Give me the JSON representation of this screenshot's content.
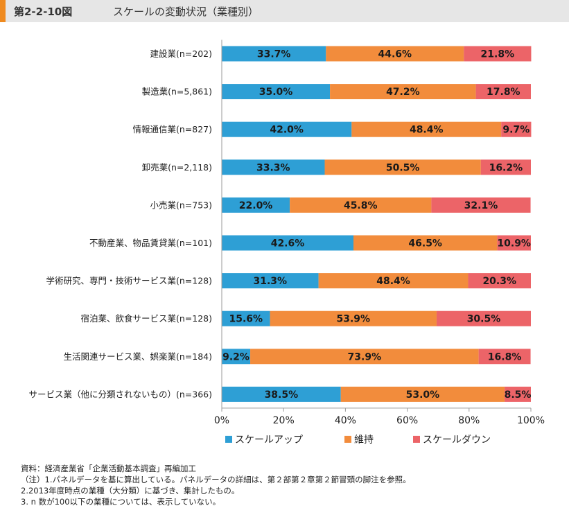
{
  "header": {
    "figure_number": "第2-2-10図",
    "title": "スケールの変動状況（業種別）"
  },
  "chart_data": {
    "type": "bar",
    "orientation": "horizontal",
    "stacked": true,
    "title": "スケールの変動状況（業種別）",
    "categories": [
      "建設業(n=202)",
      "製造業(n=5,861)",
      "情報通信業(n=827)",
      "卸売業(n=2,118)",
      "小売業(n=753)",
      "不動産業、物品賃貸業(n=101)",
      "学術研究、専門・技術サービス業(n=128)",
      "宿泊業、飲食サービス業(n=128)",
      "生活関連サービス業、娯楽業(n=184)",
      "サービス業（他に分類されないもの）(n=366)"
    ],
    "series": [
      {
        "name": "スケールアップ",
        "color": "#2e9fd5",
        "values": [
          33.7,
          35.0,
          42.0,
          33.3,
          22.0,
          42.6,
          31.3,
          15.6,
          9.2,
          38.5
        ],
        "labels": [
          "33.7%",
          "35.0%",
          "42.0%",
          "33.3%",
          "22.0%",
          "42.6%",
          "31.3%",
          "15.6%",
          "9.2%",
          "38.5%"
        ]
      },
      {
        "name": "維持",
        "color": "#f28c3c",
        "values": [
          44.6,
          47.2,
          48.4,
          50.5,
          45.8,
          46.5,
          48.4,
          53.9,
          73.9,
          53.0
        ],
        "labels": [
          "44.6%",
          "47.2%",
          "48.4%",
          "50.5%",
          "45.8%",
          "46.5%",
          "48.4%",
          "53.9%",
          "73.9%",
          "53.0%"
        ]
      },
      {
        "name": "スケールダウン",
        "color": "#ec6468",
        "values": [
          21.8,
          17.8,
          9.7,
          16.2,
          32.1,
          10.9,
          20.3,
          30.5,
          16.8,
          8.5
        ],
        "labels": [
          "21.8%",
          "17.8%",
          "9.7%",
          "16.2%",
          "32.1%",
          "10.9%",
          "20.3%",
          "30.5%",
          "16.8%",
          "8.5%"
        ]
      }
    ],
    "xlim": [
      0,
      100
    ],
    "xticks": [
      0,
      20,
      40,
      60,
      80,
      100
    ],
    "xtick_labels": [
      "0%",
      "20%",
      "40%",
      "60%",
      "80%",
      "100%"
    ],
    "legend_position": "bottom",
    "grid": false
  },
  "notes": [
    "資料：経済産業省「企業活動基本調査」再編加工",
    "（注）1.パネルデータを基に算出している。パネルデータの詳細は、第２部第２章第２節冒頭の脚注を参照。",
    "2.2013年度時点の業種（大分類）に基づき、集計したもの。",
    "3. n 数が100以下の業種については、表示していない。"
  ]
}
